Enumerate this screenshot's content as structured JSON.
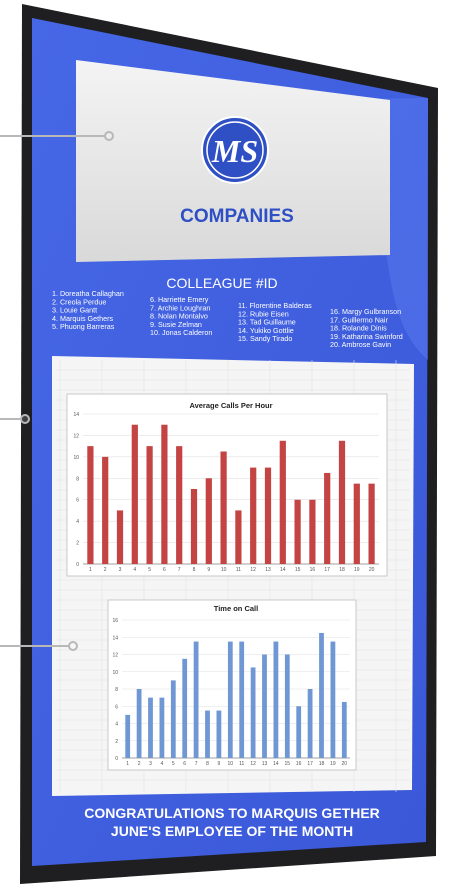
{
  "brand": {
    "logo_monogram": "MS",
    "name": "COMPANIES",
    "color": "#2f4fc4"
  },
  "colleague_heading": "COLLEAGUE #ID",
  "colleague_columns": [
    [
      "1. Doreatha Callaghan",
      "2. Creola Perdue",
      "3. Louie Gantt",
      "4. Marquis Gethers",
      "5. Phuong Barreras"
    ],
    [
      "6. Harriette Emery",
      "7. Archie Loughran",
      "8. Nolan Montalvo",
      "9. Susie Zelman",
      "10. Jonas Calderon"
    ],
    [
      "11. Florentine Balderas",
      "12. Rubie Eisen",
      "13. Tad Guillaume",
      "14. Yukiko Gottlie",
      "15. Sandy Tirado"
    ],
    [
      "16. Margy Gulbranson",
      "17. Guillermo Nair",
      "18. Rolande Dinis",
      "19. Katharina Swinford",
      "20. Ambrose Gavin"
    ]
  ],
  "footer": {
    "line1": "CONGRATULATIONS TO MARQUIS GETHER",
    "line2": "JUNE'S EMPLOYEE OF THE MONTH"
  },
  "colors": {
    "panel_blue": "#4a6ce8",
    "panel_blue_dark": "#3553d6",
    "bezel": "#1f1f21",
    "bar_red": "#c44444",
    "bar_blue": "#6f97d3"
  },
  "chart_data": [
    {
      "type": "bar",
      "title": "Average Calls Per Hour",
      "categories": [
        "1",
        "2",
        "3",
        "4",
        "5",
        "6",
        "7",
        "8",
        "9",
        "10",
        "11",
        "12",
        "13",
        "14",
        "15",
        "16",
        "17",
        "18",
        "19",
        "20"
      ],
      "values": [
        11,
        10,
        5,
        13,
        11,
        13,
        11,
        7,
        8,
        10.5,
        5,
        9,
        9,
        11.5,
        6,
        6,
        8.5,
        11.5,
        7.5,
        7.5
      ],
      "ylim": [
        0,
        14
      ],
      "yticks": [
        "0",
        "2",
        "4",
        "6",
        "8",
        "10",
        "12",
        "14"
      ],
      "grid": true
    },
    {
      "type": "bar",
      "title": "Time on Call",
      "categories": [
        "1",
        "2",
        "3",
        "4",
        "5",
        "6",
        "7",
        "8",
        "9",
        "10",
        "11",
        "12",
        "13",
        "14",
        "15",
        "16",
        "17",
        "18",
        "19",
        "20"
      ],
      "values": [
        5,
        8,
        7,
        7,
        9,
        11.5,
        13.5,
        5.5,
        5.5,
        13.5,
        13.5,
        10.5,
        12,
        13.5,
        12,
        6,
        8,
        14.5,
        13.5,
        6.5
      ],
      "ylim": [
        0,
        16
      ],
      "yticks": [
        "0",
        "2",
        "4",
        "6",
        "8",
        "10",
        "12",
        "14",
        "16"
      ],
      "grid": true
    }
  ]
}
